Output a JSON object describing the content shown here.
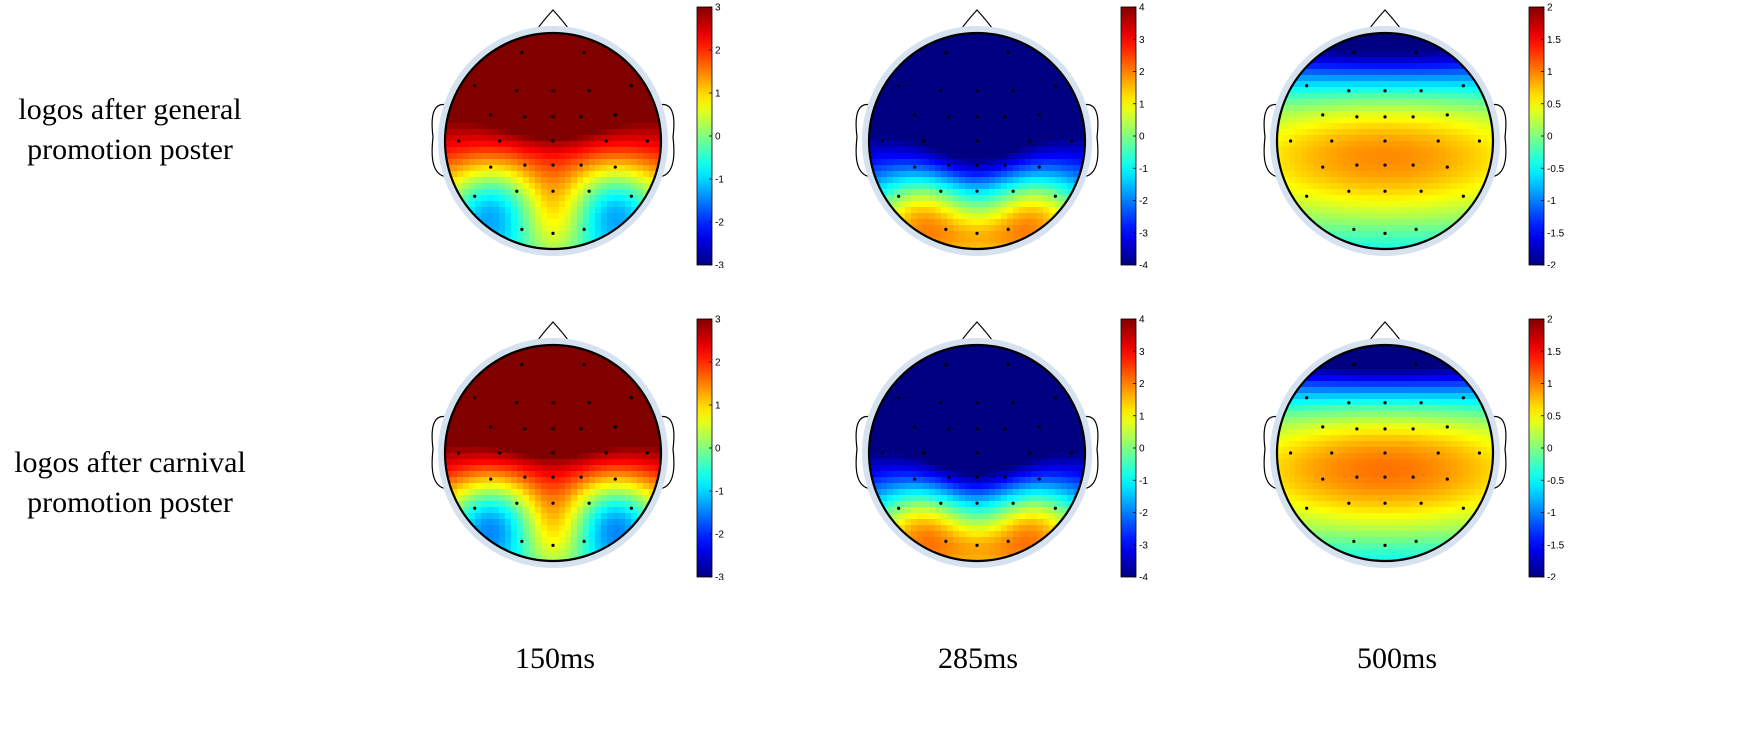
{
  "rows": [
    {
      "label_lines": [
        "logos after general",
        "promotion poster"
      ]
    },
    {
      "label_lines": [
        "logos after carnival",
        "promotion poster"
      ]
    }
  ],
  "columns": [
    {
      "label": "150ms",
      "colorbar_ticks": [
        "3",
        "2",
        "1",
        "0",
        "-1",
        "-2",
        "-3"
      ]
    },
    {
      "label": "285ms",
      "colorbar_ticks": [
        "4",
        "3",
        "2",
        "1",
        "0",
        "-1",
        "-2",
        "-3",
        "-4"
      ]
    },
    {
      "label": "500ms",
      "colorbar_ticks": [
        "2",
        "1.5",
        "1",
        "0.5",
        "0",
        "-0.5",
        "-1",
        "-1.5",
        "-2"
      ]
    }
  ],
  "maps": [
    {
      "pattern": "frontal-positive",
      "intensity": 1.0
    },
    {
      "pattern": "posterior-positive",
      "intensity": 1.0
    },
    {
      "pattern": "central-positive",
      "intensity": 1.0
    },
    {
      "pattern": "frontal-positive",
      "intensity": 1.15
    },
    {
      "pattern": "posterior-positive",
      "intensity": 1.05
    },
    {
      "pattern": "central-positive",
      "intensity": 1.1
    }
  ],
  "colormap": "jet"
}
